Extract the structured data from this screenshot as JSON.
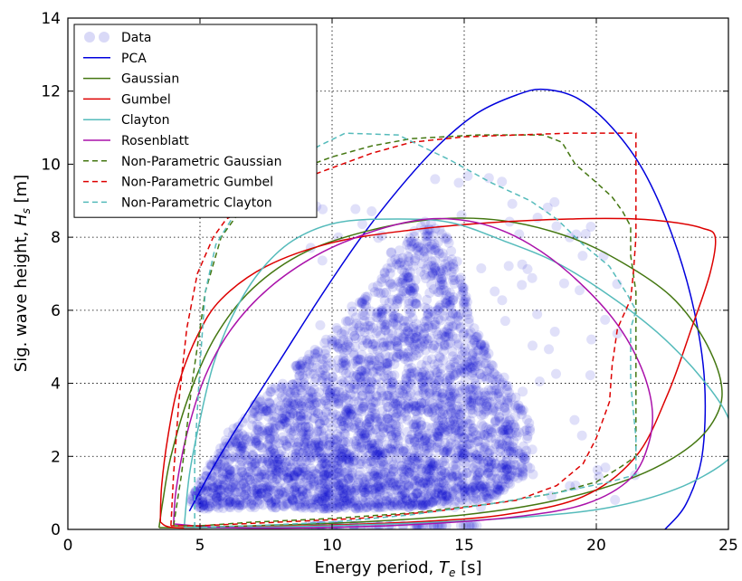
{
  "chart_data": {
    "type": "scatter",
    "title": "",
    "xlabel": "Energy period, ",
    "xlabel_symbol": "T",
    "xlabel_sub": "e",
    "xlabel_unit": " [s]",
    "ylabel": "Sig. wave height, ",
    "ylabel_symbol": "H",
    "ylabel_sub": "s",
    "ylabel_unit": " [m]",
    "xlim": [
      0,
      25
    ],
    "ylim": [
      0,
      14
    ],
    "xticks": [
      0,
      5,
      10,
      15,
      20,
      25
    ],
    "yticks": [
      0,
      2,
      4,
      6,
      8,
      10,
      12,
      14
    ],
    "grid": true,
    "legend_position": "top-left",
    "scatter": {
      "name": "Data",
      "color": "#0000cc",
      "opacity": 0.12,
      "seed": 7,
      "count": 3200,
      "envelope": [
        [
          4.6,
          0.8
        ],
        [
          5.2,
          1.6
        ],
        [
          6.0,
          2.6
        ],
        [
          7.0,
          3.4
        ],
        [
          8.5,
          4.4
        ],
        [
          10.0,
          5.4
        ],
        [
          11.5,
          6.6
        ],
        [
          12.5,
          7.6
        ],
        [
          13.5,
          8.6
        ],
        [
          14.5,
          8.0
        ],
        [
          15.0,
          6.6
        ],
        [
          15.5,
          5.4
        ],
        [
          16.5,
          4.2
        ],
        [
          17.5,
          3.0
        ],
        [
          17.5,
          1.6
        ],
        [
          16.0,
          0.8
        ],
        [
          13.0,
          0.6
        ],
        [
          10.0,
          0.55
        ],
        [
          7.0,
          0.6
        ],
        [
          5.0,
          0.55
        ]
      ]
    },
    "series": [
      {
        "name": "PCA",
        "color": "#0000dd",
        "dash": "",
        "points": [
          [
            4.6,
            0.5
          ],
          [
            5.5,
            1.7
          ],
          [
            6.5,
            2.9
          ],
          [
            8.0,
            4.6
          ],
          [
            9.5,
            6.3
          ],
          [
            11.0,
            7.9
          ],
          [
            12.5,
            9.3
          ],
          [
            14.0,
            10.5
          ],
          [
            15.5,
            11.4
          ],
          [
            17.0,
            11.9
          ],
          [
            18.0,
            12.05
          ],
          [
            19.3,
            11.8
          ],
          [
            20.6,
            11.0
          ],
          [
            21.8,
            9.8
          ],
          [
            22.9,
            8.0
          ],
          [
            23.7,
            6.0
          ],
          [
            24.1,
            4.0
          ],
          [
            24.0,
            2.0
          ],
          [
            23.4,
            0.7
          ],
          [
            22.6,
            0.0
          ]
        ]
      },
      {
        "name": "Gaussian",
        "color": "#447711",
        "dash": "",
        "points": [
          [
            3.45,
            0.05
          ],
          [
            3.6,
            0.8
          ],
          [
            3.9,
            2.0
          ],
          [
            4.6,
            3.7
          ],
          [
            5.6,
            5.3
          ],
          [
            7.0,
            6.6
          ],
          [
            9.0,
            7.6
          ],
          [
            11.5,
            8.2
          ],
          [
            14.0,
            8.5
          ],
          [
            16.5,
            8.45
          ],
          [
            19.0,
            8.0
          ],
          [
            21.0,
            7.3
          ],
          [
            22.8,
            6.4
          ],
          [
            24.0,
            5.3
          ],
          [
            24.7,
            4.1
          ],
          [
            24.6,
            3.2
          ],
          [
            23.6,
            2.3
          ],
          [
            21.5,
            1.45
          ],
          [
            18.5,
            0.8
          ],
          [
            15.0,
            0.4
          ],
          [
            11.0,
            0.2
          ],
          [
            7.0,
            0.1
          ],
          [
            4.5,
            0.05
          ],
          [
            3.45,
            0.05
          ]
        ]
      },
      {
        "name": "Gumbel",
        "color": "#dd0000",
        "dash": "",
        "points": [
          [
            3.5,
            0.2
          ],
          [
            3.55,
            1.2
          ],
          [
            3.8,
            2.6
          ],
          [
            4.2,
            4.0
          ],
          [
            4.9,
            5.3
          ],
          [
            5.8,
            6.3
          ],
          [
            7.5,
            7.2
          ],
          [
            10.0,
            7.85
          ],
          [
            13.0,
            8.2
          ],
          [
            16.0,
            8.4
          ],
          [
            19.0,
            8.5
          ],
          [
            21.5,
            8.5
          ],
          [
            23.0,
            8.4
          ],
          [
            24.0,
            8.25
          ],
          [
            24.5,
            8.0
          ],
          [
            24.3,
            7.0
          ],
          [
            23.6,
            5.5
          ],
          [
            22.7,
            3.7
          ],
          [
            21.5,
            2.0
          ],
          [
            19.5,
            0.9
          ],
          [
            16.5,
            0.4
          ],
          [
            13.0,
            0.2
          ],
          [
            9.0,
            0.1
          ],
          [
            6.0,
            0.05
          ],
          [
            4.0,
            0.05
          ],
          [
            3.5,
            0.2
          ]
        ]
      },
      {
        "name": "Clayton",
        "color": "#55bbbb",
        "dash": "",
        "points": [
          [
            4.4,
            0.05
          ],
          [
            4.6,
            1.5
          ],
          [
            5.0,
            3.0
          ],
          [
            5.5,
            4.5
          ],
          [
            6.2,
            5.8
          ],
          [
            7.2,
            7.0
          ],
          [
            8.5,
            7.9
          ],
          [
            10.2,
            8.4
          ],
          [
            12.5,
            8.5
          ],
          [
            14.5,
            8.4
          ],
          [
            16.5,
            7.9
          ],
          [
            18.5,
            7.3
          ],
          [
            20.5,
            6.4
          ],
          [
            22.3,
            5.4
          ],
          [
            23.8,
            4.3
          ],
          [
            24.9,
            3.2
          ],
          [
            25.2,
            2.3
          ],
          [
            24.8,
            1.8
          ],
          [
            23.0,
            1.1
          ],
          [
            20.5,
            0.6
          ],
          [
            17.5,
            0.35
          ],
          [
            14.0,
            0.2
          ],
          [
            10.0,
            0.1
          ],
          [
            6.5,
            0.05
          ],
          [
            4.4,
            0.05
          ]
        ]
      },
      {
        "name": "Rosenblatt",
        "color": "#aa11aa",
        "dash": "",
        "points": [
          [
            4.0,
            0.15
          ],
          [
            4.1,
            1.1
          ],
          [
            4.5,
            2.6
          ],
          [
            5.2,
            4.2
          ],
          [
            6.2,
            5.5
          ],
          [
            7.6,
            6.6
          ],
          [
            9.4,
            7.5
          ],
          [
            11.3,
            8.1
          ],
          [
            13.1,
            8.45
          ],
          [
            14.5,
            8.5
          ],
          [
            16.0,
            8.3
          ],
          [
            17.5,
            7.8
          ],
          [
            19.0,
            7.0
          ],
          [
            20.6,
            5.8
          ],
          [
            21.6,
            4.6
          ],
          [
            22.1,
            3.4
          ],
          [
            22.0,
            2.4
          ],
          [
            21.3,
            1.4
          ],
          [
            19.6,
            0.7
          ],
          [
            17.0,
            0.35
          ],
          [
            13.5,
            0.15
          ],
          [
            9.5,
            0.05
          ],
          [
            6.0,
            0.05
          ],
          [
            4.0,
            0.15
          ]
        ]
      },
      {
        "name": "Non-Parametric Gaussian",
        "color": "#447711",
        "dash": "6,4",
        "points": [
          [
            4.0,
            0.1
          ],
          [
            4.3,
            1.5
          ],
          [
            4.7,
            4.0
          ],
          [
            5.2,
            6.5
          ],
          [
            5.8,
            8.0
          ],
          [
            6.8,
            9.0
          ],
          [
            8.5,
            9.8
          ],
          [
            10.0,
            10.2
          ],
          [
            11.5,
            10.5
          ],
          [
            13.0,
            10.7
          ],
          [
            15.5,
            10.8
          ],
          [
            18.0,
            10.8
          ],
          [
            18.7,
            10.6
          ],
          [
            19.2,
            10.0
          ],
          [
            20.0,
            9.5
          ],
          [
            20.6,
            9.1
          ],
          [
            21.0,
            8.7
          ],
          [
            21.3,
            8.3
          ],
          [
            21.3,
            7.5
          ],
          [
            21.5,
            6.5
          ],
          [
            21.5,
            3.0
          ],
          [
            21.5,
            2.0
          ],
          [
            20.9,
            1.7
          ],
          [
            20.0,
            1.3
          ],
          [
            18.5,
            1.0
          ],
          [
            16.0,
            0.7
          ],
          [
            13.0,
            0.45
          ],
          [
            10.0,
            0.3
          ],
          [
            7.0,
            0.2
          ],
          [
            5.0,
            0.1
          ],
          [
            4.0,
            0.1
          ]
        ]
      },
      {
        "name": "Non-Parametric Gumbel",
        "color": "#dd0000",
        "dash": "6,4",
        "points": [
          [
            3.9,
            0.1
          ],
          [
            4.0,
            1.5
          ],
          [
            4.2,
            3.5
          ],
          [
            4.5,
            5.5
          ],
          [
            4.9,
            7.0
          ],
          [
            5.5,
            8.0
          ],
          [
            6.0,
            8.5
          ],
          [
            7.2,
            9.0
          ],
          [
            8.5,
            9.5
          ],
          [
            10.0,
            9.9
          ],
          [
            11.5,
            10.3
          ],
          [
            13.0,
            10.6
          ],
          [
            15.0,
            10.75
          ],
          [
            17.0,
            10.8
          ],
          [
            19.0,
            10.85
          ],
          [
            21.5,
            10.85
          ],
          [
            21.5,
            8.0
          ],
          [
            21.4,
            7.0
          ],
          [
            21.3,
            6.3
          ],
          [
            20.8,
            5.5
          ],
          [
            20.6,
            4.5
          ],
          [
            20.5,
            3.5
          ],
          [
            20.0,
            2.5
          ],
          [
            19.5,
            1.8
          ],
          [
            18.5,
            1.2
          ],
          [
            17.0,
            0.8
          ],
          [
            14.0,
            0.5
          ],
          [
            11.0,
            0.3
          ],
          [
            8.0,
            0.2
          ],
          [
            5.0,
            0.1
          ],
          [
            3.9,
            0.1
          ]
        ]
      },
      {
        "name": "Non-Parametric Clayton",
        "color": "#55bbbb",
        "dash": "6,4",
        "points": [
          [
            4.8,
            0.05
          ],
          [
            4.8,
            2.0
          ],
          [
            5.0,
            4.5
          ],
          [
            5.2,
            6.5
          ],
          [
            5.6,
            7.8
          ],
          [
            6.2,
            8.5
          ],
          [
            7.0,
            9.2
          ],
          [
            8.0,
            9.8
          ],
          [
            9.5,
            10.5
          ],
          [
            10.5,
            10.85
          ],
          [
            12.5,
            10.8
          ],
          [
            14.5,
            10.1
          ],
          [
            16.0,
            9.5
          ],
          [
            17.5,
            9.0
          ],
          [
            18.5,
            8.5
          ],
          [
            19.5,
            7.8
          ],
          [
            20.5,
            7.2
          ],
          [
            21.2,
            6.4
          ],
          [
            21.5,
            6.0
          ],
          [
            21.3,
            5.5
          ],
          [
            21.3,
            4.0
          ],
          [
            21.5,
            2.5
          ],
          [
            21.5,
            1.5
          ],
          [
            20.5,
            1.3
          ],
          [
            18.5,
            1.0
          ],
          [
            16.0,
            0.7
          ],
          [
            13.0,
            0.4
          ],
          [
            10.0,
            0.2
          ],
          [
            7.0,
            0.1
          ],
          [
            4.8,
            0.05
          ]
        ]
      }
    ]
  }
}
